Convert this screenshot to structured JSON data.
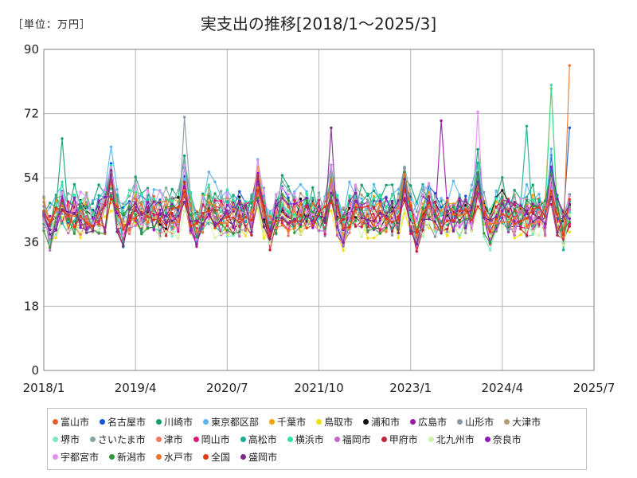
{
  "unit_label": "［単位：万円］",
  "chart_data": {
    "type": "line",
    "title": "実支出の推移[2018/1～2025/3]",
    "x_range": [
      "2018/1",
      "2025/7"
    ],
    "x_ticks": [
      "2018/1",
      "2019/4",
      "2020/7",
      "2021/10",
      "2023/1",
      "2024/4",
      "2025/7"
    ],
    "ylim": [
      0,
      90
    ],
    "y_ticks": [
      0,
      18,
      36,
      54,
      72,
      90
    ],
    "grid": true,
    "legend_position": "bottom",
    "series": [
      {
        "name": "富山市",
        "color": "#e8612c",
        "base": 44.0,
        "amp": 6.0,
        "seed": 1
      },
      {
        "name": "名古屋市",
        "color": "#1155dd",
        "base": 45.0,
        "amp": 7.0,
        "seed": 2
      },
      {
        "name": "川崎市",
        "color": "#15a06a",
        "base": 47.0,
        "amp": 7.0,
        "seed": 3
      },
      {
        "name": "東京都区部",
        "color": "#5ab4ec",
        "base": 48.0,
        "amp": 7.0,
        "seed": 4
      },
      {
        "name": "千葉市",
        "color": "#f2a20c",
        "base": 44.5,
        "amp": 6.0,
        "seed": 5
      },
      {
        "name": "鳥取市",
        "color": "#f0e10e",
        "base": 41.0,
        "amp": 5.0,
        "seed": 6
      },
      {
        "name": "浦和市",
        "color": "#111111",
        "base": 44.0,
        "amp": 6.0,
        "seed": 7
      },
      {
        "name": "広島市",
        "color": "#9a1aa8",
        "base": 43.5,
        "amp": 6.0,
        "seed": 8
      },
      {
        "name": "山形市",
        "color": "#8b98a3",
        "base": 43.0,
        "amp": 7.0,
        "seed": 9
      },
      {
        "name": "大津市",
        "color": "#b39a78",
        "base": 45.0,
        "amp": 6.0,
        "seed": 10
      },
      {
        "name": "堺市",
        "color": "#7ee8c8",
        "base": 42.0,
        "amp": 6.0,
        "seed": 11
      },
      {
        "name": "さいたま市",
        "color": "#7fa7a5",
        "base": 46.0,
        "amp": 7.0,
        "seed": 12
      },
      {
        "name": "津市",
        "color": "#f07860",
        "base": 42.5,
        "amp": 6.0,
        "seed": 13
      },
      {
        "name": "岡山市",
        "color": "#e0177a",
        "base": 43.0,
        "amp": 6.0,
        "seed": 14
      },
      {
        "name": "高松市",
        "color": "#16b090",
        "base": 44.0,
        "amp": 7.0,
        "seed": 15
      },
      {
        "name": "横浜市",
        "color": "#29e7a0",
        "base": 46.0,
        "amp": 6.0,
        "seed": 16
      },
      {
        "name": "福岡市",
        "color": "#c368c8",
        "base": 42.0,
        "amp": 6.0,
        "seed": 17
      },
      {
        "name": "甲府市",
        "color": "#c02538",
        "base": 42.0,
        "amp": 6.0,
        "seed": 18
      },
      {
        "name": "北九州市",
        "color": "#cff2a6",
        "base": 41.0,
        "amp": 5.0,
        "seed": 19
      },
      {
        "name": "奈良市",
        "color": "#8c1ab8",
        "base": 44.0,
        "amp": 6.0,
        "seed": 20
      },
      {
        "name": "宇都宮市",
        "color": "#e38ff2",
        "base": 45.0,
        "amp": 7.0,
        "seed": 21
      },
      {
        "name": "新潟市",
        "color": "#33963a",
        "base": 43.0,
        "amp": 6.0,
        "seed": 22
      },
      {
        "name": "水戸市",
        "color": "#e9782f",
        "base": 43.0,
        "amp": 6.0,
        "seed": 23
      },
      {
        "name": "全国",
        "color": "#e23a12",
        "base": 43.0,
        "amp": 4.0,
        "seed": 24
      },
      {
        "name": "盛岡市",
        "color": "#7a2e8a",
        "base": 43.0,
        "amp": 6.0,
        "seed": 25
      }
    ],
    "notable_points": [
      {
        "series": "水戸市",
        "date": "2025/3",
        "value": 85.5
      },
      {
        "series": "千葉市",
        "date": "2024/12",
        "value": 79.0
      },
      {
        "series": "横浜市",
        "date": "2024/12",
        "value": 80.0
      },
      {
        "series": "宇都宮市",
        "date": "2023/12",
        "value": 72.5
      },
      {
        "series": "山形市",
        "date": "2019/12",
        "value": 71.0
      },
      {
        "series": "広島市",
        "date": "2023/6",
        "value": 70.0
      },
      {
        "series": "名古屋市",
        "date": "2025/3",
        "value": 68.0
      },
      {
        "series": "高松市",
        "date": "2024/8",
        "value": 68.5
      },
      {
        "series": "盛岡市",
        "date": "2021/12",
        "value": 68.0
      },
      {
        "series": "川崎市",
        "date": "2018/4",
        "value": 65.0
      },
      {
        "series": "全国",
        "date": "2025/3",
        "value": 48.0
      }
    ]
  }
}
